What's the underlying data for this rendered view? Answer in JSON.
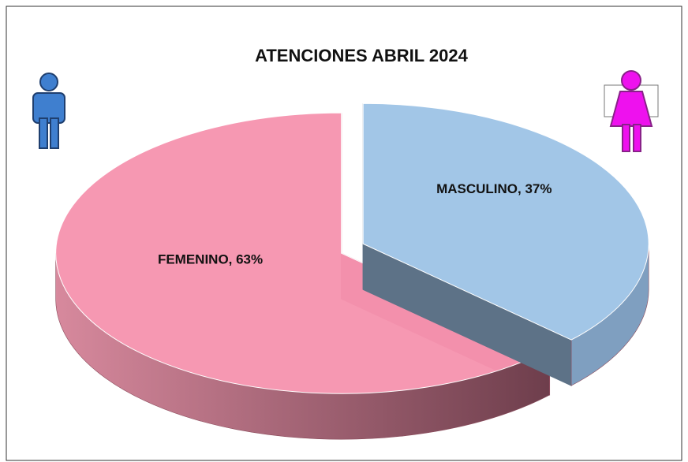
{
  "chart_data": {
    "type": "pie",
    "title": "ATENCIONES  ABRIL 2024",
    "values": [
      37,
      63
    ],
    "value_labels": [
      "MASCULINO, 37%",
      "FEMENINO, 63%"
    ],
    "colors": [
      "#9dc3e6",
      "#f592ae"
    ]
  }
}
